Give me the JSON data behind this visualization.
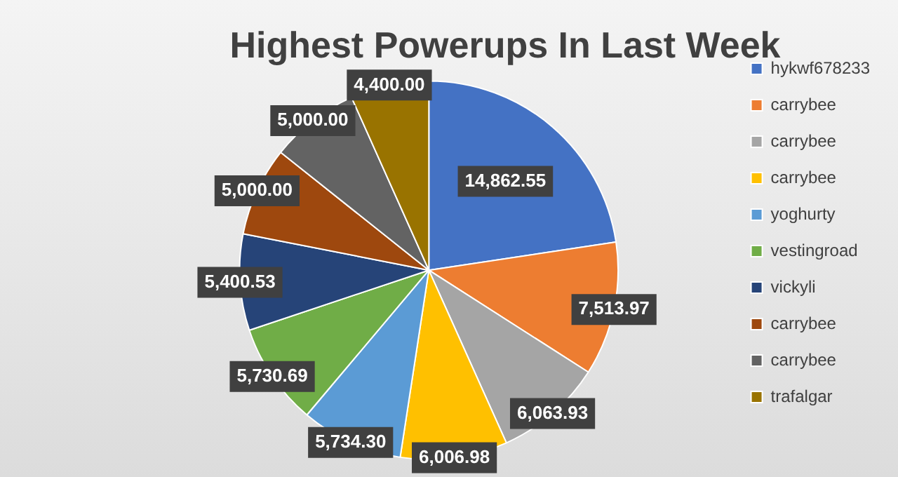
{
  "chart_data": {
    "type": "pie",
    "title": "Highest Powerups In Last Week",
    "categories": [
      "hykwf678233",
      "carrybee",
      "carrybee",
      "carrybee",
      "yoghurty",
      "vestingroad",
      "vickyli",
      "carrybee",
      "carrybee",
      "trafalgar"
    ],
    "values": [
      14862.55,
      7513.97,
      6063.93,
      6006.98,
      5734.3,
      5730.69,
      5400.53,
      5000.0,
      5000.0,
      4400.0
    ],
    "value_labels": [
      "14,862.55",
      "7,513.97",
      "6,063.93",
      "6,006.98",
      "5,734.30",
      "5,730.69",
      "5,400.53",
      "5,000.00",
      "5,000.00",
      "4,400.00"
    ],
    "colors": [
      "#4472c4",
      "#ed7d31",
      "#a5a5a5",
      "#ffc000",
      "#5b9bd5",
      "#70ad47",
      "#264478",
      "#9e480e",
      "#636363",
      "#997300"
    ],
    "legend": "right"
  }
}
